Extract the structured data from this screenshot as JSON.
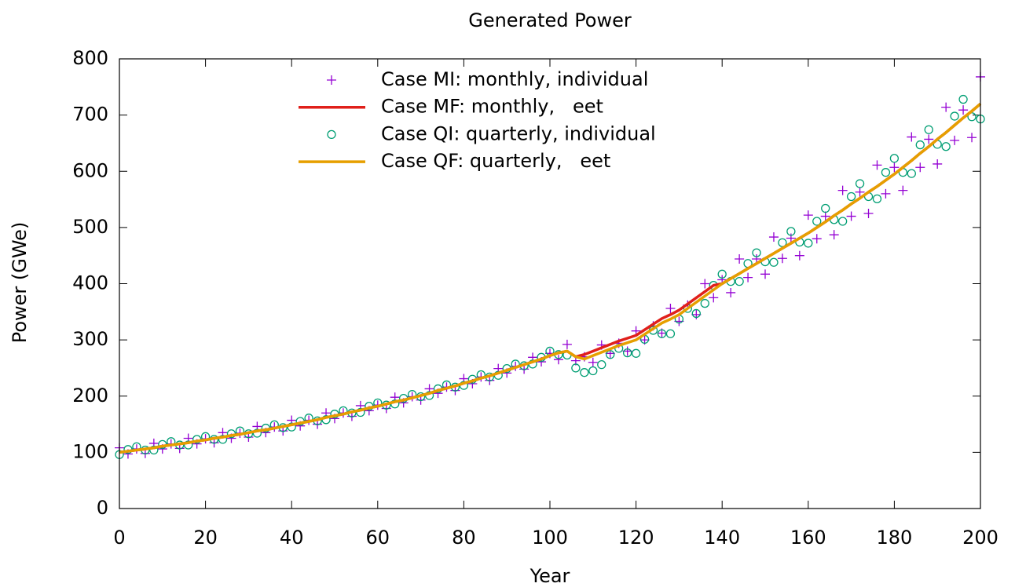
{
  "chart_data": {
    "type": "scatter",
    "title": "Generated Power",
    "xlabel": "Year",
    "ylabel": "Power (GWe)",
    "xlim": [
      0,
      200
    ],
    "ylim": [
      0,
      800
    ],
    "xticks": [
      0,
      20,
      40,
      60,
      80,
      100,
      120,
      140,
      160,
      180,
      200
    ],
    "yticks": [
      0,
      100,
      200,
      300,
      400,
      500,
      600,
      700,
      800
    ],
    "legend": "top-left",
    "x": [
      0,
      2,
      4,
      6,
      8,
      10,
      12,
      14,
      16,
      18,
      20,
      22,
      24,
      26,
      28,
      30,
      32,
      34,
      36,
      38,
      40,
      42,
      44,
      46,
      48,
      50,
      52,
      54,
      56,
      58,
      60,
      62,
      64,
      66,
      68,
      70,
      72,
      74,
      76,
      78,
      80,
      82,
      84,
      86,
      88,
      90,
      92,
      94,
      96,
      98,
      100,
      102,
      104,
      106,
      108,
      110,
      112,
      114,
      116,
      118,
      120,
      122,
      124,
      126,
      128,
      130,
      132,
      134,
      136,
      138,
      140,
      142,
      144,
      146,
      148,
      150,
      152,
      154,
      156,
      158,
      160,
      162,
      164,
      166,
      168,
      170,
      172,
      174,
      176,
      178,
      180,
      182,
      184,
      186,
      188,
      190,
      192,
      194,
      196,
      198,
      200
    ],
    "series": [
      {
        "name": "Case MI: monthly, individual",
        "color": "#9400d3",
        "style": "plus",
        "values": [
          108,
          97,
          106,
          98,
          116,
          106,
          115,
          107,
          125,
          115,
          124,
          117,
          135,
          125,
          134,
          127,
          146,
          135,
          145,
          138,
          157,
          147,
          157,
          150,
          170,
          160,
          170,
          164,
          183,
          174,
          184,
          178,
          198,
          188,
          199,
          193,
          213,
          205,
          216,
          210,
          231,
          222,
          234,
          228,
          249,
          241,
          253,
          248,
          269,
          261,
          276,
          265,
          292,
          263,
          270,
          260,
          291,
          276,
          294,
          280,
          316,
          300,
          325,
          312,
          356,
          333,
          362,
          345,
          400,
          375,
          407,
          384,
          444,
          411,
          444,
          417,
          483,
          445,
          481,
          450,
          522,
          480,
          520,
          487,
          566,
          520,
          563,
          525,
          611,
          560,
          607,
          566,
          661,
          607,
          657,
          613,
          714,
          655,
          709,
          660,
          768
        ]
      },
      {
        "name": "Case MF: monthly,   eet",
        "color": "#e0201b",
        "style": "line",
        "values": [
          100,
          102,
          104,
          106,
          108,
          111,
          113,
          115,
          117,
          120,
          122,
          125,
          127,
          130,
          132,
          135,
          138,
          140,
          143,
          146,
          149,
          152,
          155,
          158,
          162,
          165,
          168,
          172,
          175,
          179,
          182,
          186,
          190,
          193,
          197,
          201,
          205,
          210,
          214,
          218,
          223,
          227,
          232,
          236,
          241,
          246,
          251,
          256,
          261,
          266,
          272,
          277,
          280,
          270,
          274,
          280,
          286,
          292,
          298,
          303,
          308,
          318,
          328,
          338,
          345,
          353,
          364,
          375,
          386,
          397,
          400,
          409,
          418,
          427,
          436,
          445,
          454,
          463,
          472,
          481,
          490,
          500,
          510,
          521,
          531,
          542,
          552,
          563,
          573,
          584,
          595,
          607,
          619,
          632,
          644,
          657,
          669,
          682,
          695,
          707,
          720
        ]
      },
      {
        "name": "Case QI: quarterly, individual",
        "color": "#009e73",
        "style": "circle",
        "values": [
          96,
          105,
          110,
          104,
          104,
          114,
          119,
          113,
          113,
          123,
          128,
          123,
          123,
          133,
          138,
          133,
          134,
          143,
          149,
          144,
          145,
          155,
          161,
          156,
          158,
          168,
          174,
          170,
          171,
          182,
          188,
          184,
          186,
          196,
          203,
          199,
          201,
          213,
          220,
          216,
          219,
          230,
          238,
          234,
          237,
          249,
          257,
          254,
          257,
          269,
          280,
          274,
          273,
          250,
          242,
          245,
          256,
          274,
          285,
          277,
          276,
          301,
          317,
          311,
          311,
          337,
          356,
          347,
          365,
          397,
          417,
          404,
          404,
          436,
          455,
          439,
          438,
          473,
          493,
          474,
          472,
          511,
          534,
          514,
          511,
          555,
          578,
          555,
          551,
          598,
          623,
          598,
          596,
          647,
          674,
          648,
          644,
          698,
          728,
          697,
          693
        ]
      },
      {
        "name": "Case QF: quarterly,   eet",
        "color": "#e69f00",
        "style": "line",
        "values": [
          100,
          102,
          104,
          106,
          108,
          111,
          113,
          115,
          117,
          120,
          122,
          125,
          127,
          130,
          132,
          135,
          138,
          140,
          143,
          146,
          149,
          152,
          155,
          158,
          162,
          165,
          168,
          172,
          175,
          179,
          182,
          186,
          190,
          193,
          197,
          201,
          205,
          210,
          214,
          218,
          223,
          227,
          232,
          236,
          241,
          246,
          251,
          256,
          261,
          266,
          272,
          277,
          280,
          270,
          266,
          272,
          278,
          284,
          290,
          295,
          300,
          310,
          320,
          330,
          337,
          345,
          356,
          367,
          378,
          389,
          400,
          409,
          418,
          427,
          436,
          445,
          454,
          463,
          472,
          481,
          490,
          500,
          510,
          521,
          531,
          542,
          552,
          563,
          573,
          584,
          595,
          607,
          619,
          632,
          644,
          657,
          669,
          682,
          695,
          707,
          720
        ]
      }
    ]
  }
}
